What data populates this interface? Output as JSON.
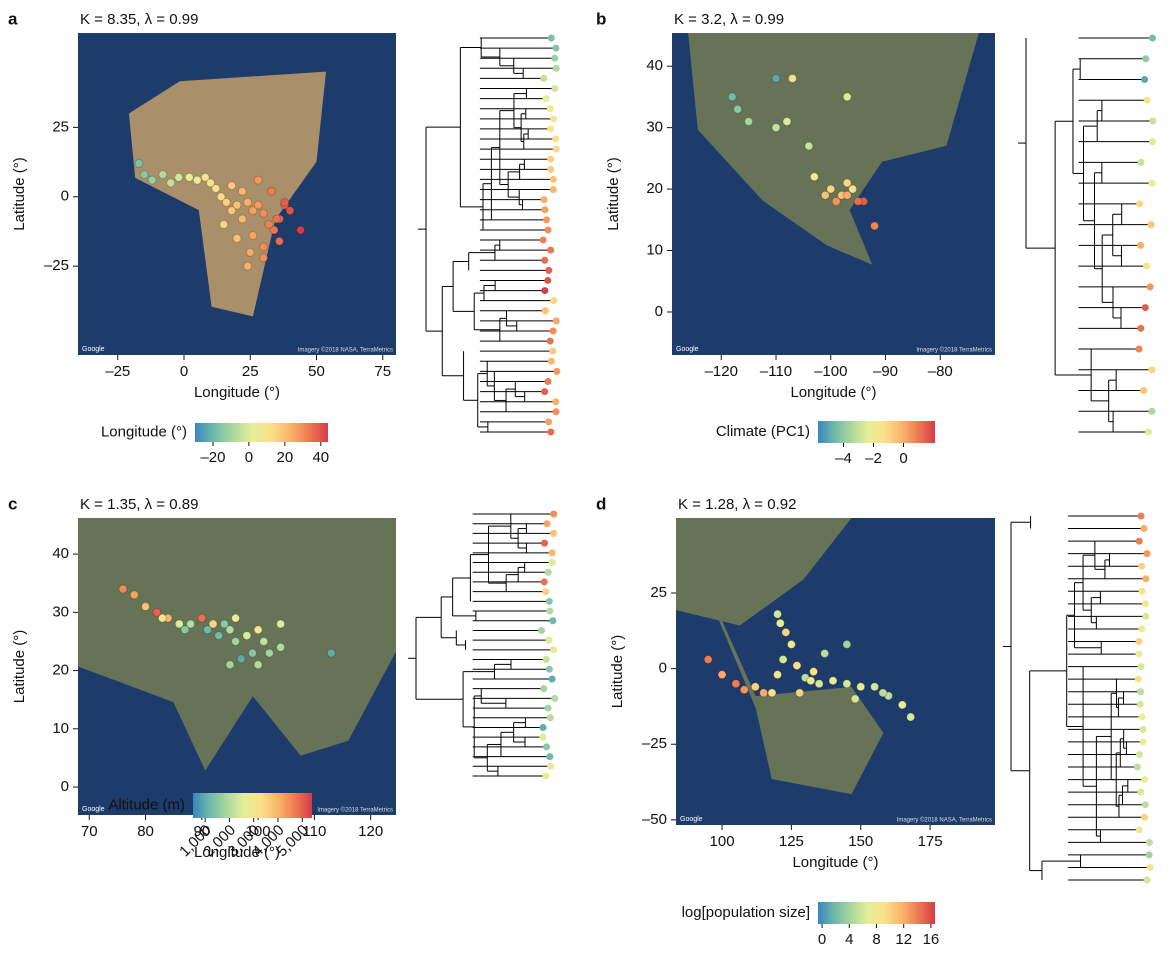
{
  "chart_data": [
    {
      "type": "scatter",
      "panel": "a",
      "title": "K = 8.35, λ = 0.99",
      "xlabel": "Longitude (°)",
      "ylabel": "Latitude (°)",
      "xlim": [
        -40,
        80
      ],
      "ylim": [
        -57,
        59
      ],
      "xticks": [
        {
          "value": -25,
          "label": "–25"
        },
        0,
        25,
        50,
        75
      ],
      "yticks": [
        {
          "value": -25,
          "label": "–25"
        },
        0,
        25
      ],
      "attribution": "Google",
      "credit": "Imagery ©2018 NASA, TerraMetrics",
      "x": [
        -17,
        -15,
        -12,
        -8,
        -5,
        -2,
        2,
        5,
        8,
        10,
        12,
        14,
        16,
        18,
        20,
        22,
        24,
        26,
        28,
        30,
        32,
        34,
        36,
        38,
        40,
        44,
        15,
        20,
        25,
        30,
        35,
        18,
        22,
        28,
        33,
        38,
        24,
        30,
        26,
        36
      ],
      "y": [
        12,
        8,
        6,
        8,
        5,
        7,
        7,
        6,
        7,
        5,
        3,
        0,
        -2,
        -5,
        -3,
        -8,
        -2,
        -5,
        -3,
        -6,
        -10,
        -12,
        -8,
        -3,
        -5,
        -12,
        -10,
        -15,
        -20,
        -18,
        -8,
        4,
        2,
        6,
        2,
        -2,
        -25,
        -22,
        -14,
        -16
      ],
      "c": [
        -17,
        -15,
        -12,
        -8,
        -5,
        -2,
        2,
        5,
        8,
        10,
        12,
        14,
        16,
        18,
        20,
        22,
        24,
        26,
        28,
        30,
        32,
        34,
        36,
        38,
        40,
        44,
        15,
        20,
        25,
        30,
        35,
        18,
        22,
        28,
        33,
        38,
        24,
        30,
        26,
        36
      ],
      "colorbar": {
        "label": "Longitude (°)",
        "lim": [
          -30,
          44
        ],
        "ticks": [
          {
            "value": -20,
            "label": "–20"
          },
          0,
          20,
          40
        ],
        "colors": [
          "#3a86be",
          "#6fbaa9",
          "#abd89e",
          "#e5ef97",
          "#fbe08b",
          "#f9b56a",
          "#ee7a50",
          "#d63c4b"
        ]
      }
    },
    {
      "type": "scatter",
      "panel": "b",
      "title": "K = 3.2, λ = 0.99",
      "xlabel": "Longitude (°)",
      "ylabel": "Latitude (°)",
      "xlim": [
        -129,
        -70
      ],
      "ylim": [
        -7,
        45.4
      ],
      "xticks": [
        {
          "value": -120,
          "label": "–120"
        },
        {
          "value": -110,
          "label": "–110"
        },
        {
          "value": -100,
          "label": "–100"
        },
        {
          "value": -90,
          "label": "–90"
        },
        {
          "value": -80,
          "label": "–80"
        }
      ],
      "yticks": [
        0,
        10,
        20,
        30,
        40
      ],
      "attribution": "Google",
      "credit": "Imagery ©2018 TerraMetrics",
      "x": [
        -118,
        -117,
        -110,
        -107,
        -110,
        -108,
        -104,
        -103,
        -100,
        -98,
        -97,
        -96,
        -99,
        -94,
        -95,
        -92,
        -97,
        -101,
        -115,
        -97
      ],
      "y": [
        35,
        33,
        38,
        38,
        30,
        31,
        27,
        22,
        20,
        19,
        19,
        20,
        18,
        18,
        18,
        14,
        21,
        19,
        31,
        35
      ],
      "c": [
        -4.5,
        -4,
        -5,
        -1.5,
        -3,
        -2.5,
        -3,
        -2,
        -1,
        -0.5,
        0,
        -1.5,
        0.5,
        1.5,
        1.2,
        0.8,
        -1,
        -0.5,
        -3.5,
        -2.5
      ],
      "colorbar": {
        "label": "Climate (PC1)",
        "lim": [
          -5.7,
          2.1
        ],
        "ticks": [
          {
            "value": -4,
            "label": "–4"
          },
          {
            "value": -2,
            "label": "–2"
          },
          0
        ],
        "colors": [
          "#3a86be",
          "#6fbaa9",
          "#abd89e",
          "#e5ef97",
          "#fbe08b",
          "#f9b56a",
          "#ee7a50",
          "#d63c4b"
        ]
      }
    },
    {
      "type": "scatter",
      "panel": "c",
      "title": "K = 1.35, λ = 0.89",
      "xlabel": "Longitude (°)",
      "ylabel": "Latitude (°)",
      "xlim": [
        68,
        124.5
      ],
      "ylim": [
        -4.8,
        46.2
      ],
      "xticks": [
        70,
        80,
        90,
        100,
        110,
        120
      ],
      "yticks": [
        0,
        10,
        20,
        30,
        40
      ],
      "attribution": "Google",
      "credit": "Imagery ©2018 TerraMetrics",
      "x": [
        76,
        78,
        80,
        82,
        84,
        86,
        88,
        90,
        92,
        94,
        95,
        93,
        96,
        98,
        100,
        101,
        99,
        97,
        102,
        104,
        95,
        100,
        113,
        104,
        87,
        91,
        83,
        96
      ],
      "y": [
        34,
        33,
        31,
        30,
        29,
        28,
        28,
        29,
        28,
        28,
        27,
        26,
        25,
        26,
        27,
        25,
        23,
        22,
        23,
        24,
        21,
        21,
        23,
        28,
        27,
        27,
        29,
        29
      ],
      "c": [
        4500,
        4200,
        3800,
        5000,
        4000,
        2500,
        2000,
        4800,
        3500,
        1500,
        2000,
        1200,
        1800,
        2500,
        3000,
        2200,
        1500,
        1000,
        1800,
        2000,
        1800,
        2000,
        1000,
        2500,
        1500,
        1200,
        3000,
        2800
      ],
      "colorbar": {
        "label": "Altitude (m)",
        "lim": [
          500,
          5400
        ],
        "ticks": [
          {
            "value": 1000,
            "label": "1,000"
          },
          {
            "value": 2000,
            "label": "2,000"
          },
          {
            "value": 3000,
            "label": "3,000"
          },
          {
            "value": 4000,
            "label": "4,000"
          },
          {
            "value": 5000,
            "label": "5,000"
          }
        ],
        "colors": [
          "#3a86be",
          "#6fbaa9",
          "#abd89e",
          "#e5ef97",
          "#fbe08b",
          "#f9b56a",
          "#ee7a50",
          "#d63c4b"
        ]
      }
    },
    {
      "type": "scatter",
      "panel": "d",
      "title": "K = 1.28, λ = 0.92",
      "xlabel": "Longitude (°)",
      "ylabel": "Latitude (°)",
      "xlim": [
        83.4,
        198.4
      ],
      "ylim": [
        -51.7,
        49.8
      ],
      "xticks": [
        100,
        125,
        150,
        175
      ],
      "yticks": [
        {
          "value": -50,
          "label": "–50"
        },
        {
          "value": -25,
          "label": "–25"
        },
        0,
        25
      ],
      "attribution": "Google",
      "credit": "Imagery ©2018 NASA, TerraMetrics",
      "x": [
        95,
        100,
        105,
        108,
        112,
        115,
        118,
        120,
        122,
        125,
        123,
        121,
        120,
        127,
        130,
        135,
        140,
        145,
        150,
        155,
        160,
        165,
        168,
        158,
        128,
        132,
        137,
        145,
        133,
        148
      ],
      "y": [
        3,
        -2,
        -5,
        -7,
        -6,
        -8,
        -8,
        -2,
        3,
        8,
        12,
        15,
        18,
        1,
        -3,
        -5,
        -4,
        -5,
        -6,
        -6,
        -9,
        -12,
        -16,
        -8,
        -8,
        -4,
        5,
        8,
        -1,
        -10
      ],
      "c": [
        14,
        12,
        14,
        13,
        10,
        12,
        9,
        8,
        6,
        8,
        10,
        7,
        6,
        9,
        5,
        6,
        7,
        6,
        7,
        6,
        5,
        7,
        6,
        5,
        10,
        8,
        5,
        4,
        9,
        6
      ],
      "colorbar": {
        "label": "log[population size]",
        "lim": [
          -0.6,
          16.6
        ],
        "ticks": [
          0,
          4,
          8,
          12,
          16
        ],
        "colors": [
          "#3a86be",
          "#6fbaa9",
          "#abd89e",
          "#e5ef97",
          "#fbe08b",
          "#f9b56a",
          "#ee7a50",
          "#d63c4b"
        ]
      }
    }
  ]
}
